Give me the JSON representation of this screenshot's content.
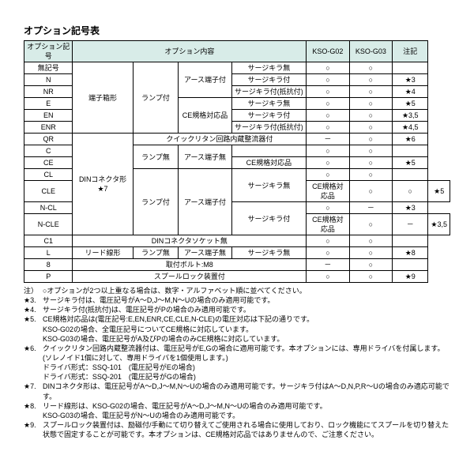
{
  "title": "オプション記号表",
  "columns": {
    "code": "オプション記号",
    "content": "オプション内容",
    "g02": "KSO-G02",
    "g03": "KSO-G03",
    "note": "注記"
  },
  "connectors": {
    "terminal_box": "端子箱形",
    "din": "DINコネクタ形\n★7",
    "lead": "リード線形"
  },
  "lamp": {
    "on": "ランプ付",
    "off": "ランプ無"
  },
  "earth": {
    "on": "アース端子付",
    "off": "アース端子無"
  },
  "ce": "CE規格対応品",
  "quick": "クイックリタン回路内蔵整流器付",
  "din_socket_none": "DINコネクタソケット無",
  "bolt": "取付ボルト:M8",
  "spool": "スプールロック装置付",
  "surge": {
    "none": "サージキラ無",
    "on": "サージキラ付",
    "res": "サージキラ付(抵抗付)"
  },
  "marks": {
    "o": "○",
    "dash": "－"
  },
  "rows": {
    "blank": {
      "code": "無記号",
      "note": ""
    },
    "N": {
      "code": "N",
      "note": "★3"
    },
    "NR": {
      "code": "NR",
      "note": "★4"
    },
    "E": {
      "code": "E",
      "note": "★5"
    },
    "EN": {
      "code": "EN",
      "note": "★3,5"
    },
    "ENR": {
      "code": "ENR",
      "note": "★4,5"
    },
    "QR": {
      "code": "QR",
      "note": "★6"
    },
    "C": {
      "code": "C",
      "note": ""
    },
    "CE": {
      "code": "CE",
      "note": "★5"
    },
    "CL": {
      "code": "CL",
      "note": ""
    },
    "CLE": {
      "code": "CLE",
      "note": "★5"
    },
    "NCL": {
      "code": "N-CL",
      "note": "★3"
    },
    "NCLE": {
      "code": "N-CLE",
      "note": "★3,5"
    },
    "C1": {
      "code": "C1",
      "note": ""
    },
    "L": {
      "code": "L",
      "note": "★8"
    },
    "8": {
      "code": "8",
      "note": ""
    },
    "P": {
      "code": "P",
      "note": "★9"
    }
  },
  "notes_head": "注）",
  "notes": [
    {
      "k": "",
      "t": "○オプションが2つ以上重なる場合は、数字・アルファベット順に並べてください。"
    },
    {
      "k": "★3.",
      "t": "サージキラ付は、電圧記号がA～D,J～M,N～Uの場合のみ適用可能です。"
    },
    {
      "k": "★4.",
      "t": "サージキラ付(抵抗付)は、電圧記号がPの場合のみ適用可能です。"
    },
    {
      "k": "★5.",
      "t": "CE規格対応品は(電圧記号:E,EN,ENR,CE,CLE,N-CLE)の電圧対応は下記の通りです。"
    },
    {
      "k": "",
      "t": "KSO-G02の場合、全電圧記号についてCE規格に対応しています。"
    },
    {
      "k": "",
      "t": "KSO-G03の場合、電圧記号がA及びPの場合のみCE規格に対応しています。"
    },
    {
      "k": "★6.",
      "t": "クイックリタン回路内蔵整流器付は、電圧記号がE,Gの場合に適用可能です。本オプションには、専用ドライバを付属します。"
    },
    {
      "k": "",
      "t": "(ソレノイド1個に対して、専用ドライバを1個使用します。)"
    },
    {
      "k": "",
      "t": "ドライバ形式：SSQ-101　(電圧記号がEの場合)"
    },
    {
      "k": "",
      "t": "ドライバ形式：SSQ-201　(電圧記号がGの場合)"
    },
    {
      "k": "★7.",
      "t": "DINコネクタ形は、電圧記号がA～D,J～M,N～Uの場合のみ適用可能です。サージキラ付はA～D,N,P,R～Uの場合のみ適応可能です。"
    },
    {
      "k": "★8.",
      "t": "リード線形は、KSO-G02の場合、電圧記号がA～D,J～M,N～Uの場合のみ適用可能です。"
    },
    {
      "k": "",
      "t": "KSO-G03の場合、電圧記号がN～Uの場合のみ適用可能です。"
    },
    {
      "k": "★9.",
      "t": "スプールロック装置付は、励磁付/手動にて切り替えてご使用される場合に使用しており、ロック機能にてスプールを切り替えた状態で固定することが可能です。本オプションは、CE規格対応品ではありませんので、ご注意ください。"
    }
  ]
}
